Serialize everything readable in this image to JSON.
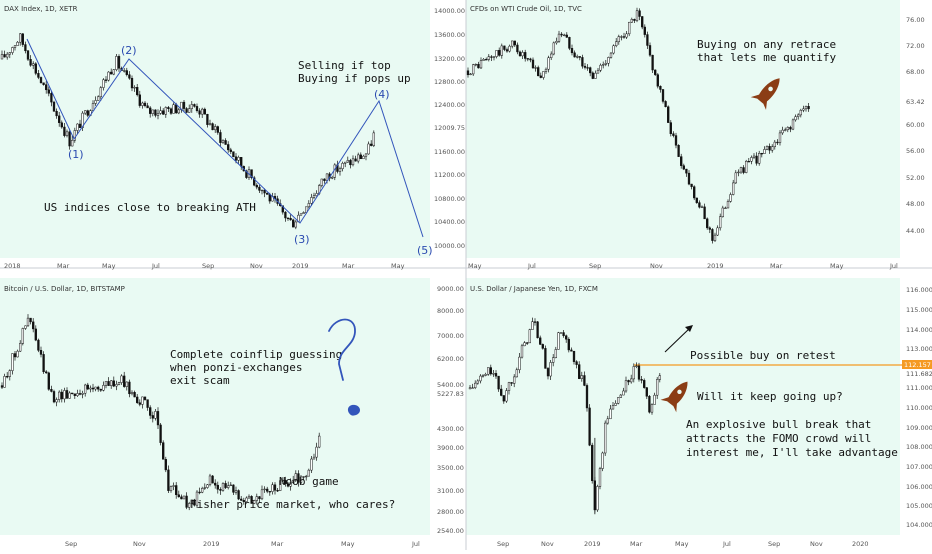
{
  "colors": {
    "panel_bg": "#e9faf3",
    "candle": "#111111",
    "wave": "#3355bb",
    "question_mark": "#3355bb",
    "rocket": "#8b3d15",
    "retest_line": "#f59a23"
  },
  "chart_data": [
    {
      "id": "dax",
      "type": "candlestick",
      "title": "DAX Index, 1D, XETR",
      "yticks": [
        "14000.00",
        "13600.00",
        "13200.00",
        "12800.00",
        "12400.00",
        "12009.75",
        "11600.00",
        "11200.00",
        "10800.00",
        "10400.00",
        "10000.00"
      ],
      "current_price": "12009.75",
      "ylim": [
        10000,
        14000
      ],
      "xticks": [
        "2018",
        "Mar",
        "May",
        "Jul",
        "Sep",
        "Nov",
        "2019",
        "Mar",
        "May"
      ],
      "series": [
        {
          "x": "2018-01",
          "y": 13200
        },
        {
          "x": "2018-01-23",
          "y": 13570
        },
        {
          "x": "2018-03-26",
          "y": 11800
        },
        {
          "x": "2018-05-22",
          "y": 13170
        },
        {
          "x": "2018-06-30",
          "y": 12300
        },
        {
          "x": "2018-08-30",
          "y": 12400
        },
        {
          "x": "2018-10-30",
          "y": 11300
        },
        {
          "x": "2018-12-27",
          "y": 10400
        },
        {
          "x": "2019-02-10",
          "y": 11250
        },
        {
          "x": "2019-03-30",
          "y": 11600
        },
        {
          "x": "2019-04-10",
          "y": 12009.75
        }
      ],
      "wave_labels": [
        "(1)",
        "(2)",
        "(3)",
        "(4)",
        "(5)"
      ],
      "wave_points": [
        {
          "label": "(1)",
          "x": "2018-03-26",
          "y": 11800
        },
        {
          "label": "(2)",
          "x": "2018-05-22",
          "y": 13170
        },
        {
          "label": "(3)",
          "x": "2018-12-27",
          "y": 10400
        },
        {
          "label": "(4)",
          "x": "2019-04-20",
          "y": 12400
        },
        {
          "label": "(5)",
          "x": "2019-06-15",
          "y": 10100
        }
      ],
      "annotations": [
        "Selling if top",
        "Buying if pops up",
        "US indices close to breaking ATH"
      ]
    },
    {
      "id": "wti",
      "type": "candlestick",
      "title": "CFDs on WTI Crude Oil, 1D, TVC",
      "yticks": [
        "76.00",
        "72.00",
        "68.00",
        "63.42",
        "60.00",
        "56.00",
        "52.00",
        "48.00",
        "44.00"
      ],
      "current_price": "63.42",
      "ylim": [
        44,
        76
      ],
      "xticks": [
        "May",
        "Jul",
        "Sep",
        "Nov",
        "2019",
        "Mar",
        "May",
        "Jul"
      ],
      "series": [
        {
          "x": "2018-04",
          "y": 68
        },
        {
          "x": "2018-05-20",
          "y": 72
        },
        {
          "x": "2018-06-20",
          "y": 67
        },
        {
          "x": "2018-07-10",
          "y": 74
        },
        {
          "x": "2018-08-15",
          "y": 67
        },
        {
          "x": "2018-10-03",
          "y": 76.5
        },
        {
          "x": "2018-11-15",
          "y": 56
        },
        {
          "x": "2018-12-24",
          "y": 43
        },
        {
          "x": "2019-01-20",
          "y": 53
        },
        {
          "x": "2019-02-20",
          "y": 56
        },
        {
          "x": "2019-04-10",
          "y": 63.4
        }
      ],
      "annotations": [
        "Buying on any retrace",
        "that lets me quantify"
      ]
    },
    {
      "id": "btc",
      "type": "candlestick",
      "title": "Bitcoin / U.S. Dollar, 1D, BITSTAMP",
      "yticks": [
        "9000.00",
        "8000.00",
        "7000.00",
        "6200.00",
        "5400.00",
        "5227.83",
        "4300.00",
        "3900.00",
        "3500.00",
        "3100.00",
        "2800.00",
        "2540.00"
      ],
      "current_price": "5227.83",
      "ylim": [
        2540,
        9000
      ],
      "xticks": [
        "Sep",
        "Nov",
        "2019",
        "Mar",
        "May",
        "Jul"
      ],
      "series": [
        {
          "x": "2018-07",
          "y": 6400
        },
        {
          "x": "2018-07-25",
          "y": 8200
        },
        {
          "x": "2018-08-14",
          "y": 6100
        },
        {
          "x": "2018-10-15",
          "y": 6500
        },
        {
          "x": "2018-11-14",
          "y": 5600
        },
        {
          "x": "2018-11-25",
          "y": 3800
        },
        {
          "x": "2018-12-15",
          "y": 3200
        },
        {
          "x": "2019-01-01",
          "y": 3900
        },
        {
          "x": "2019-02-07",
          "y": 3400
        },
        {
          "x": "2019-03-30",
          "y": 4100
        },
        {
          "x": "2019-04-10",
          "y": 5227.83
        }
      ],
      "annotations": [
        "Complete coinflip guessing",
        "when ponzi-exchanges",
        "exit scam",
        "Noob game",
        "Fisher price market, who cares?"
      ]
    },
    {
      "id": "usdjpy",
      "type": "candlestick",
      "title": "U.S. Dollar / Japanese Yen, 1D, FXCM",
      "yticks": [
        "116.000",
        "115.000",
        "114.000",
        "113.000",
        "112.157",
        "111.682",
        "111.000",
        "110.000",
        "109.000",
        "108.000",
        "107.000",
        "106.000",
        "105.000",
        "104.000"
      ],
      "current_price": "112.157",
      "marked_price": "111.682",
      "ylim": [
        104,
        116
      ],
      "xticks": [
        "Sep",
        "Nov",
        "2019",
        "Mar",
        "May",
        "Jul",
        "Sep",
        "Nov",
        "2020"
      ],
      "series": [
        {
          "x": "2018-07",
          "y": 111
        },
        {
          "x": "2018-08-01",
          "y": 112
        },
        {
          "x": "2018-08-20",
          "y": 110.5
        },
        {
          "x": "2018-10-04",
          "y": 114.5
        },
        {
          "x": "2018-10-26",
          "y": 111.7
        },
        {
          "x": "2018-11-12",
          "y": 114
        },
        {
          "x": "2018-12-20",
          "y": 111
        },
        {
          "x": "2019-01-03",
          "y": 104.8
        },
        {
          "x": "2019-01-20",
          "y": 109.5
        },
        {
          "x": "2019-03-05",
          "y": 112.1
        },
        {
          "x": "2019-03-25",
          "y": 110
        },
        {
          "x": "2019-04-10",
          "y": 111.7
        }
      ],
      "annotations": [
        "Possible buy on retest",
        "Will it keep going up?",
        "An explosive bull break that",
        "attracts the FOMO crowd will",
        "interest me, I'll take advantage"
      ]
    }
  ]
}
